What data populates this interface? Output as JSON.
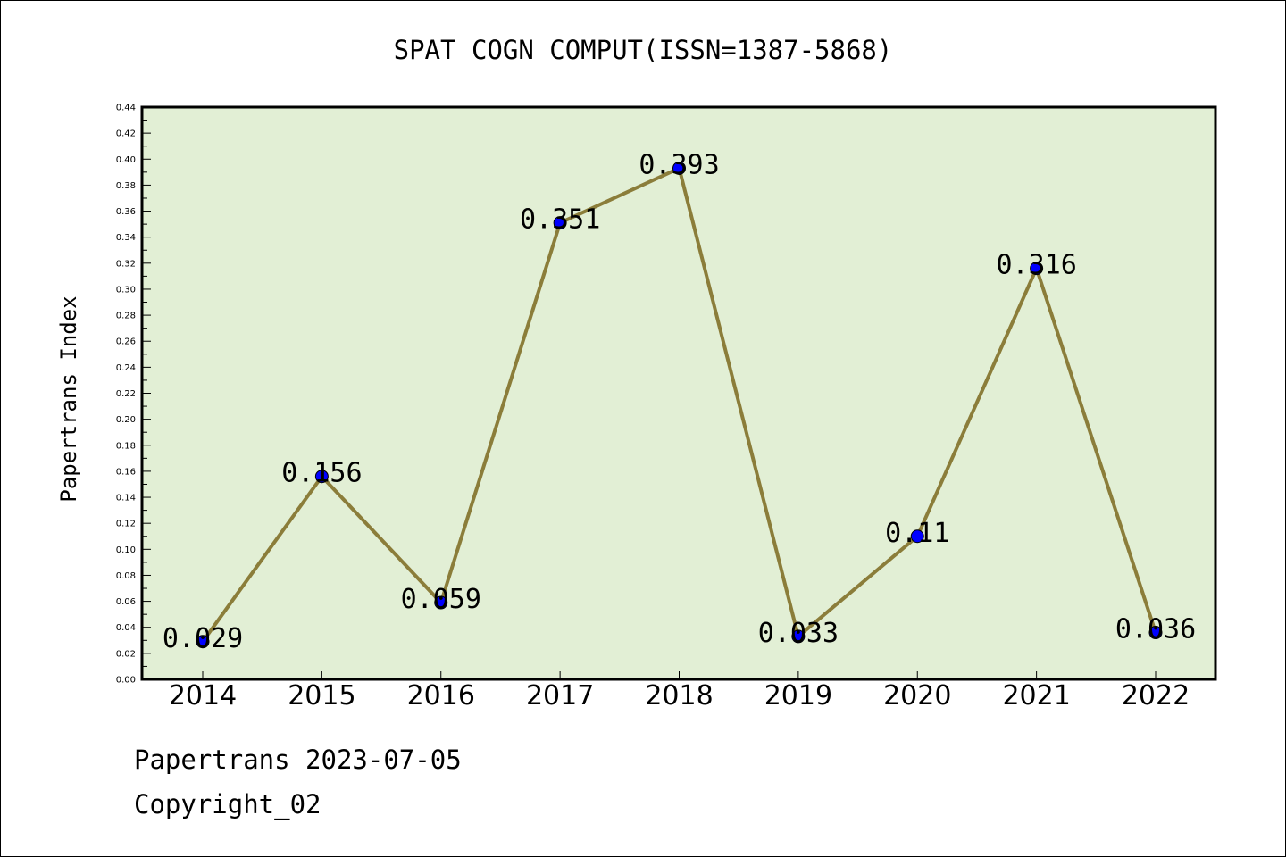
{
  "chart_data": {
    "type": "line",
    "title": "SPAT COGN COMPUT(ISSN=1387-5868)",
    "xlabel": "",
    "ylabel": "Papertrans Index",
    "categories": [
      "2014",
      "2015",
      "2016",
      "2017",
      "2018",
      "2019",
      "2020",
      "2021",
      "2022"
    ],
    "values": [
      0.029,
      0.156,
      0.059,
      0.351,
      0.393,
      0.033,
      0.11,
      0.316,
      0.036
    ],
    "data_labels": [
      "0.029",
      "0.156",
      "0.059",
      "0.351",
      "0.393",
      "0.033",
      "0.11",
      "0.316",
      "0.036"
    ],
    "ylim": [
      0,
      0.44
    ],
    "yticks": [
      "0.00",
      "0.02",
      "0.04",
      "0.06",
      "0.08",
      "0.10",
      "0.12",
      "0.14",
      "0.16",
      "0.18",
      "0.20",
      "0.22",
      "0.24",
      "0.26",
      "0.28",
      "0.30",
      "0.32",
      "0.34",
      "0.36",
      "0.38",
      "0.40",
      "0.42",
      "0.44"
    ],
    "grid": false,
    "colors": {
      "plot_background": "#e2efd5",
      "line": "#8b7d3a",
      "marker": "#0000ff"
    }
  },
  "footer": {
    "line1": "Papertrans 2023-07-05",
    "line2": "Copyright_02"
  }
}
